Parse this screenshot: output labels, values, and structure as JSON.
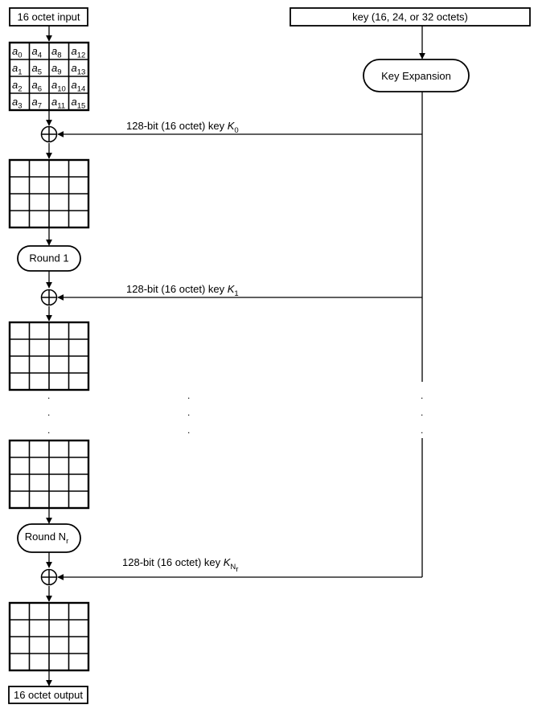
{
  "input_label": "16 octet input",
  "output_label": "16 octet output",
  "key_label": "key (16, 24, or 32 octets)",
  "key_expansion_label": "Key Expansion",
  "state_cells": [
    {
      "base": "a",
      "sub": "0"
    },
    {
      "base": "a",
      "sub": "4"
    },
    {
      "base": "a",
      "sub": "8"
    },
    {
      "base": "a",
      "sub": "12"
    },
    {
      "base": "a",
      "sub": "1"
    },
    {
      "base": "a",
      "sub": "5"
    },
    {
      "base": "a",
      "sub": "9"
    },
    {
      "base": "a",
      "sub": "13"
    },
    {
      "base": "a",
      "sub": "2"
    },
    {
      "base": "a",
      "sub": "6"
    },
    {
      "base": "a",
      "sub": "10"
    },
    {
      "base": "a",
      "sub": "14"
    },
    {
      "base": "a",
      "sub": "3"
    },
    {
      "base": "a",
      "sub": "7"
    },
    {
      "base": "a",
      "sub": "11"
    },
    {
      "base": "a",
      "sub": "15"
    }
  ],
  "round_keys": [
    {
      "text": "128-bit (16 octet) key ",
      "symbol": "K",
      "sub": "0",
      "subsub": ""
    },
    {
      "text": "128-bit (16 octet) key ",
      "symbol": "K",
      "sub": "1",
      "subsub": ""
    },
    {
      "text": "128-bit (16 octet) key ",
      "symbol": "K",
      "sub": "N",
      "subsub": "r"
    }
  ],
  "rounds": [
    {
      "text": "Round 1",
      "sub": ""
    },
    {
      "text": "Round N",
      "sub": "r"
    }
  ],
  "ellipsis": "."
}
